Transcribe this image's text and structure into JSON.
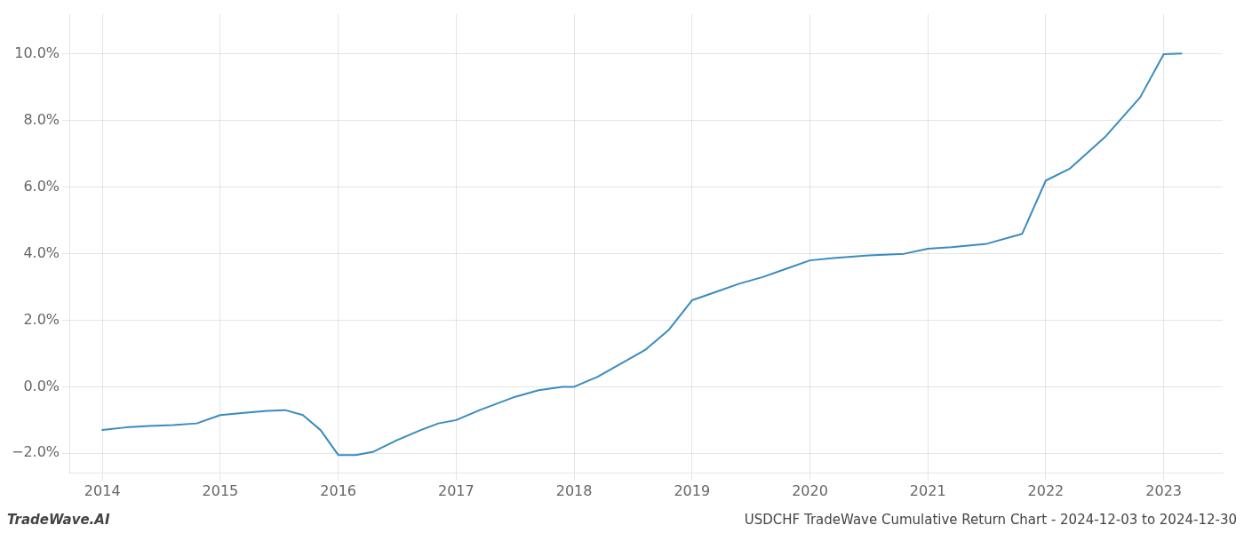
{
  "chart_data": {
    "type": "line",
    "x": [
      2014.0,
      2014.2,
      2014.4,
      2014.6,
      2014.8,
      2015.0,
      2015.2,
      2015.4,
      2015.55,
      2015.7,
      2015.85,
      2016.0,
      2016.15,
      2016.3,
      2016.5,
      2016.7,
      2016.85,
      2017.0,
      2017.2,
      2017.5,
      2017.7,
      2017.9,
      2018.0,
      2018.2,
      2018.4,
      2018.6,
      2018.8,
      2019.0,
      2019.2,
      2019.4,
      2019.6,
      2019.8,
      2020.0,
      2020.2,
      2020.5,
      2020.8,
      2021.0,
      2021.2,
      2021.5,
      2021.8,
      2022.0,
      2022.2,
      2022.5,
      2022.8,
      2023.0,
      2023.15
    ],
    "values": [
      -1.3,
      -1.22,
      -1.18,
      -1.15,
      -1.1,
      -0.85,
      -0.78,
      -0.72,
      -0.7,
      -0.85,
      -1.3,
      -2.05,
      -2.05,
      -1.95,
      -1.6,
      -1.3,
      -1.1,
      -1.0,
      -0.7,
      -0.3,
      -0.1,
      0.0,
      0.0,
      0.3,
      0.7,
      1.1,
      1.7,
      2.6,
      2.85,
      3.1,
      3.3,
      3.55,
      3.8,
      3.87,
      3.95,
      4.0,
      4.15,
      4.2,
      4.3,
      4.6,
      6.2,
      6.55,
      7.5,
      8.7,
      10.0,
      10.02
    ],
    "color": "#3a8bbf",
    "xlim": [
      2013.72,
      2023.5
    ],
    "ylim": [
      -2.6,
      11.2
    ],
    "xticks": [
      2014,
      2015,
      2016,
      2017,
      2018,
      2019,
      2020,
      2021,
      2022,
      2023
    ],
    "yticks": [
      {
        "value": -2.0,
        "label": "−2.0%"
      },
      {
        "value": 0.0,
        "label": "0.0%"
      },
      {
        "value": 2.0,
        "label": "2.0%"
      },
      {
        "value": 4.0,
        "label": "4.0%"
      },
      {
        "value": 6.0,
        "label": "6.0%"
      },
      {
        "value": 8.0,
        "label": "8.0%"
      },
      {
        "value": 10.0,
        "label": "10.0%"
      }
    ],
    "grid": true,
    "annotations": [
      "TradeWave.AI",
      "USDCHF TradeWave Cumulative Return Chart - 2024-12-03 to 2024-12-30"
    ]
  }
}
